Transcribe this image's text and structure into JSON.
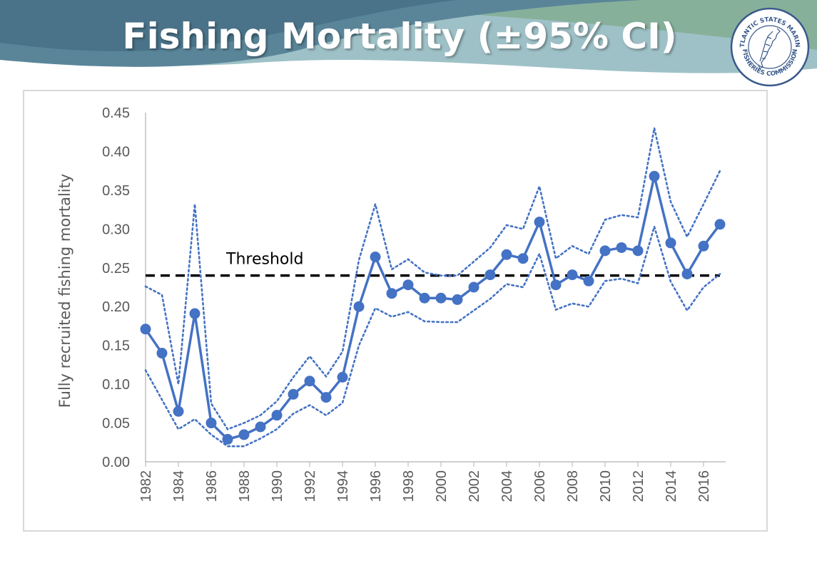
{
  "slide": {
    "title": "Fishing Mortality (±95% CI)",
    "logo": {
      "text_top": "ATLANTIC STATES MARINE",
      "text_bottom": "FISHERIES COMMISSION",
      "icon": "atlantic-coast-map-icon"
    }
  },
  "colors": {
    "series": "#4472c4",
    "threshold": "#000000",
    "axis_text": "#595959",
    "axis_line": "#bfbfbf",
    "banner_dark": "#4d7a91",
    "banner_light": "#8fb6a4"
  },
  "chart_data": {
    "type": "line",
    "title": "",
    "xlabel": "",
    "ylabel": "Fully recruited fishing mortality",
    "ylim": [
      0,
      0.45
    ],
    "yticks": [
      "0.00",
      "0.05",
      "0.10",
      "0.15",
      "0.20",
      "0.25",
      "0.30",
      "0.35",
      "0.40",
      "0.45"
    ],
    "xticks": [
      "1982",
      "1984",
      "1986",
      "1988",
      "1990",
      "1992",
      "1994",
      "1996",
      "1998",
      "2000",
      "2002",
      "2004",
      "2006",
      "2008",
      "2010",
      "2012",
      "2014",
      "2016"
    ],
    "x": [
      1982,
      1983,
      1984,
      1985,
      1986,
      1987,
      1988,
      1989,
      1990,
      1991,
      1992,
      1993,
      1994,
      1995,
      1996,
      1997,
      1998,
      1999,
      2000,
      2001,
      2002,
      2003,
      2004,
      2005,
      2006,
      2007,
      2008,
      2009,
      2010,
      2011,
      2012,
      2013,
      2014,
      2015,
      2016,
      2017
    ],
    "series": [
      {
        "name": "Fishing mortality",
        "values": [
          0.171,
          0.14,
          0.065,
          0.191,
          0.05,
          0.029,
          0.035,
          0.045,
          0.06,
          0.087,
          0.104,
          0.083,
          0.109,
          0.2,
          0.264,
          0.217,
          0.228,
          0.211,
          0.211,
          0.209,
          0.225,
          0.241,
          0.267,
          0.262,
          0.309,
          0.228,
          0.241,
          0.233,
          0.272,
          0.276,
          0.272,
          0.368,
          0.282,
          0.242,
          0.278,
          0.306
        ]
      },
      {
        "name": "Upper 95% CI",
        "values": [
          0.226,
          0.215,
          0.1,
          0.332,
          0.075,
          0.042,
          0.05,
          0.06,
          0.078,
          0.109,
          0.136,
          0.11,
          0.142,
          0.26,
          0.332,
          0.248,
          0.261,
          0.244,
          0.24,
          0.24,
          0.258,
          0.276,
          0.305,
          0.3,
          0.355,
          0.262,
          0.278,
          0.268,
          0.312,
          0.318,
          0.315,
          0.43,
          0.335,
          0.29,
          0.332,
          0.375
        ]
      },
      {
        "name": "Lower 95% CI",
        "values": [
          0.118,
          0.08,
          0.042,
          0.055,
          0.035,
          0.02,
          0.02,
          0.03,
          0.042,
          0.062,
          0.073,
          0.06,
          0.076,
          0.15,
          0.198,
          0.187,
          0.193,
          0.181,
          0.18,
          0.18,
          0.195,
          0.21,
          0.229,
          0.225,
          0.268,
          0.196,
          0.204,
          0.2,
          0.233,
          0.236,
          0.23,
          0.303,
          0.232,
          0.195,
          0.225,
          0.242
        ]
      }
    ],
    "threshold": {
      "label": "Threshold",
      "value": 0.24
    }
  }
}
